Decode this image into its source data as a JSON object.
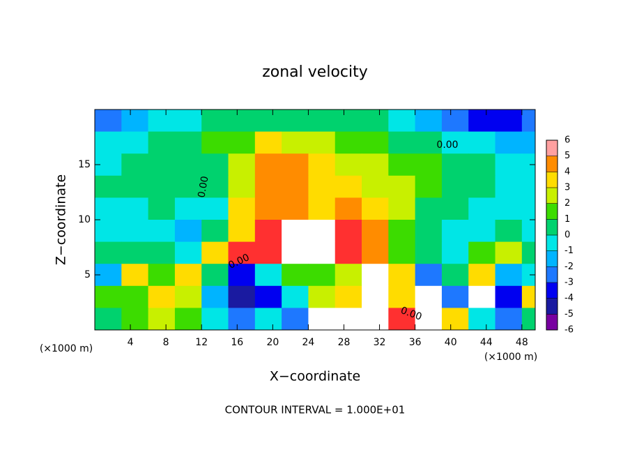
{
  "chart_data": {
    "type": "heatmap",
    "title": "zonal velocity",
    "x_label": "X−coordinate",
    "y_label": "Z−coordinate",
    "x_unit": "(×1000 m)",
    "footnote": "CONTOUR INTERVAL = 1.000E+01",
    "annotations": [
      "0.00",
      "0.00",
      "0.00",
      "0.00"
    ],
    "x": [
      1.5,
      4.5,
      7.5,
      10.5,
      13.5,
      16.5,
      19.5,
      22.5,
      25.5,
      28.5,
      31.5,
      34.5,
      37.5,
      40.5,
      43.5,
      46.5,
      49.5
    ],
    "y": [
      19,
      17,
      15,
      13,
      11,
      9,
      7,
      5,
      3,
      1
    ],
    "z": [
      [
        -3,
        -2,
        -1,
        -1,
        0,
        0.5,
        0.5,
        0.5,
        0.5,
        0.5,
        0,
        -1,
        -2,
        -3,
        -4,
        -4,
        -3
      ],
      [
        -1,
        -0.5,
        0,
        0.5,
        1,
        1.5,
        3,
        2,
        2,
        1.5,
        1,
        0.5,
        0,
        -0.5,
        -1,
        -2,
        -2
      ],
      [
        -0.5,
        0,
        0.5,
        0.5,
        0.5,
        2,
        4,
        4,
        3,
        2.5,
        2,
        1.5,
        1,
        0.5,
        0,
        -0.5,
        -1
      ],
      [
        0,
        0.5,
        0.5,
        0,
        0.5,
        2.5,
        4,
        4,
        3.5,
        3,
        2.5,
        2,
        1,
        0.5,
        0,
        -0.5,
        -1
      ],
      [
        -1,
        -1,
        0,
        -0.5,
        -0.5,
        3,
        4.5,
        4,
        3.5,
        4,
        3.5,
        2,
        0.5,
        0,
        -0.5,
        -1,
        -1
      ],
      [
        -1,
        -0.5,
        -1,
        -2,
        0,
        3,
        5,
        7,
        7,
        5,
        4,
        1.5,
        0,
        -1,
        -1,
        0,
        -1
      ],
      [
        0,
        0.5,
        0.5,
        -1,
        3,
        5,
        5,
        7,
        7,
        5,
        4,
        1,
        0,
        -1,
        1,
        2,
        0.5
      ],
      [
        -2,
        3,
        1,
        3,
        0,
        -4,
        -1,
        1,
        1,
        2,
        7,
        3,
        -3,
        0,
        3,
        -2,
        -1
      ],
      [
        1,
        1,
        3,
        2,
        -2,
        -5,
        -4,
        -1,
        2,
        3,
        7,
        3,
        7,
        -3,
        7,
        -4,
        3
      ],
      [
        0,
        1,
        2,
        1,
        -1,
        -3,
        -1,
        -3,
        7,
        7,
        7,
        5,
        7,
        3,
        -1,
        -3,
        0
      ]
    ],
    "xlim": [
      0,
      49.5
    ],
    "ylim": [
      0,
      20
    ],
    "xticks": [
      4,
      8,
      12,
      16,
      20,
      24,
      28,
      32,
      36,
      40,
      44,
      48
    ],
    "yticks": [
      5,
      10,
      15
    ],
    "colorbar_ticks": [
      6,
      5,
      4,
      3,
      2,
      1,
      0,
      -1,
      -2,
      -3,
      -4,
      -5,
      -6
    ],
    "colors": [
      "#7800a0",
      "#1a1aa0",
      "#0000f0",
      "#1e78ff",
      "#00b4ff",
      "#00e6e6",
      "#00d26e",
      "#3cdc00",
      "#c8f000",
      "#ffdc00",
      "#ff8c00",
      "#ff3030"
    ],
    "over_color": "#ffffff",
    "top_color": "#ffa0a0"
  }
}
